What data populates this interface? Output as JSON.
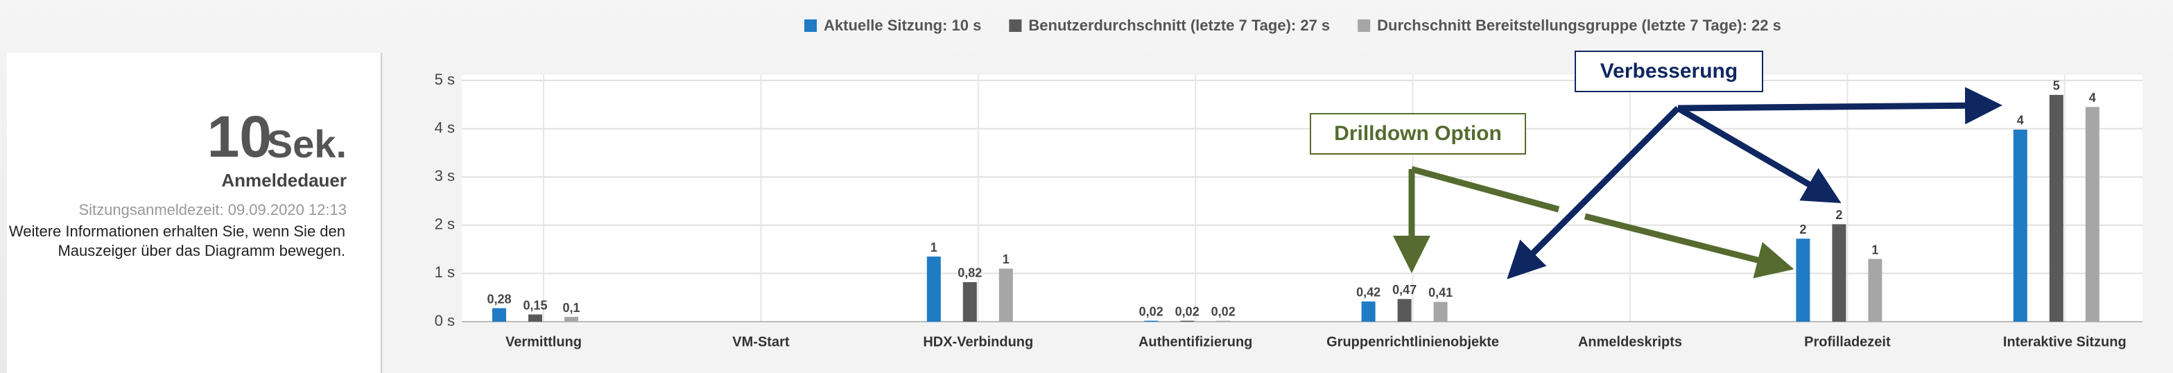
{
  "chart_data": {
    "type": "bar",
    "summary": {
      "value": "10",
      "unit": "Sek.",
      "label": "Anmeldedauer",
      "time": "Sitzungsanmeldezeit: 09.09.2020 12:13",
      "hint": "Weitere Informationen erhalten Sie, wenn Sie den Mauszeiger über das Diagramm bewegen."
    },
    "categories": [
      "Vermittlung",
      "VM-Start",
      "HDX-Verbindung",
      "Authentifizierung",
      "Gruppenrichtlinienobjekte",
      "Anmeldeskripts",
      "Profilladezeit",
      "Interaktive Sitzung"
    ],
    "series": [
      {
        "name": "Aktuelle Sitzung: 10 s",
        "color": "#1f7bc3",
        "values": [
          0.28,
          null,
          1.35,
          0.02,
          0.42,
          null,
          1.72,
          3.98
        ],
        "value_labels": [
          "0,28",
          null,
          "1",
          "0,02",
          "0,42",
          null,
          "2",
          "4"
        ]
      },
      {
        "name": "Benutzerdurchschnitt (letzte 7 Tage): 27 s",
        "color": "#595959",
        "values": [
          0.15,
          null,
          0.82,
          0.02,
          0.47,
          null,
          2.02,
          4.7
        ],
        "value_labels": [
          "0,15",
          null,
          "0,82",
          "0,02",
          "0,47",
          null,
          "2",
          "5"
        ]
      },
      {
        "name": "Durchschnitt Bereitstellungsgruppe (letzte 7 Tage): 22 s",
        "color": "#a6a6a6",
        "values": [
          0.1,
          null,
          1.1,
          0.02,
          0.41,
          null,
          1.3,
          4.45
        ],
        "value_labels": [
          "0,1",
          null,
          "1",
          "0,02",
          "0,41",
          null,
          "1",
          "4"
        ]
      }
    ],
    "ylim": [
      0,
      5
    ],
    "yticks": [
      {
        "value": 0,
        "label": "0 s"
      },
      {
        "value": 1,
        "label": "1 s"
      },
      {
        "value": 2,
        "label": "2 s"
      },
      {
        "value": 3,
        "label": "3 s"
      },
      {
        "value": 4,
        "label": "4 s"
      },
      {
        "value": 5,
        "label": "5 s"
      }
    ],
    "grid": true,
    "annotations": [
      "Drilldown Option",
      "Verbesserung"
    ]
  }
}
